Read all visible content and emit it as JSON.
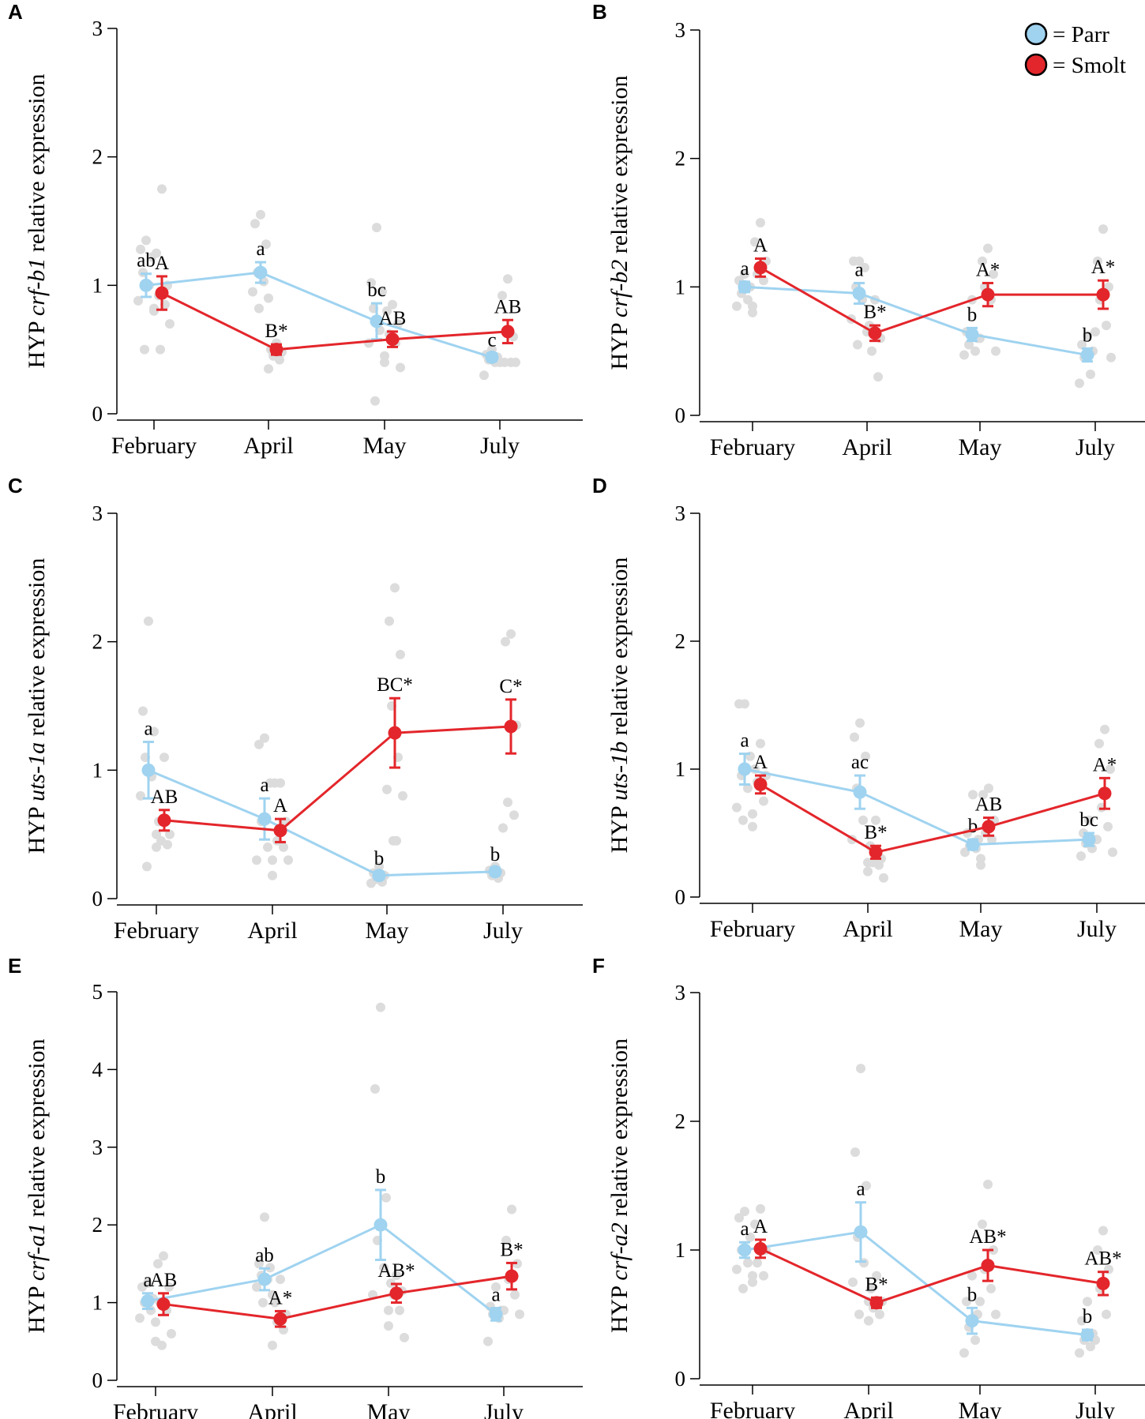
{
  "colors": {
    "parr": "#9fd3f0",
    "smolt": "#e3262b",
    "raw_points": "#dcdcdc",
    "axis": "#000000"
  },
  "legend": {
    "items": [
      {
        "key": "parr",
        "label": "= Parr"
      },
      {
        "key": "smolt",
        "label": "= Smolt"
      }
    ]
  },
  "chart_data": [
    {
      "type": "line",
      "panel": "A",
      "ylabel_prefix": "HYP ",
      "ylabel_gene": "crf-b1",
      "ylabel_suffix": " relative expression",
      "categories": [
        "February",
        "April",
        "May",
        "July"
      ],
      "ylim": [
        0,
        3
      ],
      "yticks": [
        0,
        1,
        2,
        3
      ],
      "series": [
        {
          "name": "Parr",
          "key": "parr",
          "mean": [
            1.0,
            1.1,
            0.72,
            0.44
          ],
          "sem": [
            0.09,
            0.08,
            0.14,
            0.03
          ],
          "letters": [
            "ab",
            "a",
            "bc",
            "c"
          ],
          "points": [
            [
              1.35,
              1.28,
              1.22,
              1.1,
              1.0,
              0.88,
              0.82,
              0.5
            ],
            [
              1.55,
              1.48,
              1.32,
              1.1,
              1.03,
              0.95,
              0.9,
              0.82
            ],
            [
              1.45,
              1.02,
              0.95,
              0.82,
              0.65,
              0.55,
              0.4,
              0.1
            ],
            [
              0.5,
              0.46,
              0.44,
              0.42,
              0.4,
              0.3
            ]
          ]
        },
        {
          "name": "Smolt",
          "key": "smolt",
          "mean": [
            0.94,
            0.5,
            0.58,
            0.64
          ],
          "sem": [
            0.13,
            0.04,
            0.06,
            0.09
          ],
          "letters": [
            "A",
            "B*",
            "AB",
            "AB"
          ],
          "points": [
            [
              1.75,
              1.25,
              1.0,
              0.92,
              0.85,
              0.8,
              0.7,
              0.5
            ],
            [
              0.55,
              0.5,
              0.48,
              0.45,
              0.42,
              0.35
            ],
            [
              0.85,
              0.8,
              0.7,
              0.62,
              0.55,
              0.45,
              0.36
            ],
            [
              1.05,
              0.92,
              0.6,
              0.4,
              0.4,
              0.4,
              0.4
            ]
          ]
        }
      ]
    },
    {
      "type": "line",
      "panel": "B",
      "ylabel_prefix": "HYP ",
      "ylabel_gene": "crf-b2",
      "ylabel_suffix": " relative expression",
      "categories": [
        "February",
        "April",
        "May",
        "July"
      ],
      "ylim": [
        0,
        3
      ],
      "yticks": [
        0,
        1,
        2,
        3
      ],
      "series": [
        {
          "name": "Parr",
          "key": "parr",
          "mean": [
            1.0,
            0.95,
            0.63,
            0.47
          ],
          "sem": [
            0.04,
            0.08,
            0.05,
            0.05
          ],
          "letters": [
            "a",
            "a",
            "b",
            "b"
          ],
          "points": [
            [
              1.1,
              1.05,
              1.0,
              0.95,
              0.9,
              0.85,
              0.8
            ],
            [
              1.2,
              1.2,
              1.15,
              1.0,
              0.9,
              0.75,
              0.65,
              0.55
            ],
            [
              0.9,
              0.65,
              0.6,
              0.55,
              0.5,
              0.47
            ],
            [
              0.62,
              0.55,
              0.5,
              0.45,
              0.32,
              0.25
            ]
          ]
        },
        {
          "name": "Smolt",
          "key": "smolt",
          "mean": [
            1.15,
            0.64,
            0.94,
            0.94
          ],
          "sem": [
            0.07,
            0.06,
            0.09,
            0.11
          ],
          "letters": [
            "A",
            "B*",
            "A*",
            "A*"
          ],
          "points": [
            [
              1.5,
              1.35,
              1.2,
              1.1,
              1.05,
              0.85
            ],
            [
              0.9,
              0.7,
              0.6,
              0.5,
              0.3
            ],
            [
              1.3,
              1.2,
              1.1,
              1.0,
              0.9,
              0.6,
              0.5
            ],
            [
              1.45,
              1.2,
              1.0,
              0.9,
              0.7,
              0.65,
              0.45
            ]
          ]
        }
      ]
    },
    {
      "type": "line",
      "panel": "C",
      "ylabel_prefix": "HYP ",
      "ylabel_gene": "uts-1a",
      "ylabel_suffix": " relative expression",
      "categories": [
        "February",
        "April",
        "May",
        "July"
      ],
      "ylim": [
        0,
        3
      ],
      "yticks": [
        0,
        1,
        2,
        3
      ],
      "series": [
        {
          "name": "Parr",
          "key": "parr",
          "mean": [
            1.0,
            0.62,
            0.18,
            0.21
          ],
          "sem": [
            0.22,
            0.16,
            0.03,
            0.03
          ],
          "letters": [
            "a",
            "a",
            "b",
            "b"
          ],
          "points": [
            [
              2.16,
              1.46,
              1.3,
              1.1,
              0.95,
              0.8,
              0.5,
              0.25
            ],
            [
              1.25,
              1.2,
              0.9,
              0.6,
              0.4,
              0.3,
              0.18
            ],
            [
              0.25,
              0.2,
              0.18,
              0.15,
              0.13,
              0.12
            ],
            [
              0.25,
              0.22,
              0.2,
              0.18,
              0.16
            ]
          ]
        },
        {
          "name": "Smolt",
          "key": "smolt",
          "mean": [
            0.61,
            0.53,
            1.29,
            1.34
          ],
          "sem": [
            0.08,
            0.09,
            0.27,
            0.21
          ],
          "letters": [
            "AB",
            "A",
            "BC*",
            "C*"
          ],
          "points": [
            [
              1.1,
              0.6,
              0.5,
              0.45,
              0.42,
              0.4
            ],
            [
              0.9,
              0.9,
              0.6,
              0.45,
              0.4,
              0.3,
              0.3
            ],
            [
              2.42,
              2.16,
              1.9,
              1.5,
              1.1,
              0.85,
              0.8,
              0.45,
              0.45
            ],
            [
              2.06,
              2.0,
              1.35,
              0.75,
              0.65,
              0.55
            ]
          ]
        }
      ]
    },
    {
      "type": "line",
      "panel": "D",
      "ylabel_prefix": "HYP ",
      "ylabel_gene": "uts-1b",
      "ylabel_suffix": " relative expression",
      "categories": [
        "February",
        "April",
        "May",
        "July"
      ],
      "ylim": [
        0,
        3
      ],
      "yticks": [
        0,
        1,
        2,
        3
      ],
      "series": [
        {
          "name": "Parr",
          "key": "parr",
          "mean": [
            1.0,
            0.82,
            0.41,
            0.45
          ],
          "sem": [
            0.12,
            0.13,
            0.04,
            0.05
          ],
          "letters": [
            "a",
            "ac",
            "b",
            "bc"
          ],
          "points": [
            [
              1.51,
              1.51,
              1.1,
              0.95,
              0.85,
              0.7,
              0.65,
              0.6
            ],
            [
              1.36,
              1.25,
              1.1,
              0.85,
              0.6,
              0.45,
              0.27
            ],
            [
              0.8,
              0.5,
              0.45,
              0.4,
              0.38,
              0.35,
              0.25
            ],
            [
              0.6,
              0.5,
              0.45,
              0.42,
              0.38,
              0.32
            ]
          ]
        },
        {
          "name": "Smolt",
          "key": "smolt",
          "mean": [
            0.88,
            0.35,
            0.55,
            0.81
          ],
          "sem": [
            0.07,
            0.05,
            0.07,
            0.12
          ],
          "letters": [
            "A",
            "B*",
            "AB",
            "A*"
          ],
          "points": [
            [
              1.2,
              1.0,
              0.95,
              0.9,
              0.75,
              0.55
            ],
            [
              0.6,
              0.4,
              0.3,
              0.27,
              0.25,
              0.2,
              0.15
            ],
            [
              0.85,
              0.8,
              0.6,
              0.5,
              0.45,
              0.3
            ],
            [
              1.31,
              1.2,
              1.0,
              0.7,
              0.55,
              0.45,
              0.35
            ]
          ]
        }
      ]
    },
    {
      "type": "line",
      "panel": "E",
      "ylabel_prefix": "HYP ",
      "ylabel_gene": "crf-a1",
      "ylabel_suffix": " relative expression",
      "categories": [
        "February",
        "April",
        "May",
        "July"
      ],
      "ylim": [
        0,
        5
      ],
      "yticks": [
        0,
        1,
        2,
        3,
        4,
        5
      ],
      "series": [
        {
          "name": "Parr",
          "key": "parr",
          "mean": [
            1.02,
            1.3,
            2.0,
            0.85
          ],
          "sem": [
            0.1,
            0.14,
            0.45,
            0.08
          ],
          "letters": [
            "a",
            "ab",
            "b",
            "a"
          ],
          "points": [
            [
              1.25,
              1.2,
              1.05,
              1.0,
              0.9,
              0.8,
              0.5
            ],
            [
              2.1,
              1.5,
              1.45,
              1.35,
              1.3,
              1.2,
              1.1,
              1.0
            ],
            [
              4.8,
              3.75,
              2.35,
              1.8,
              1.45,
              1.1,
              0.9
            ],
            [
              1.2,
              0.95,
              0.9,
              0.85,
              0.8,
              0.5
            ]
          ]
        },
        {
          "name": "Smolt",
          "key": "smolt",
          "mean": [
            0.98,
            0.79,
            1.12,
            1.34
          ],
          "sem": [
            0.14,
            0.1,
            0.12,
            0.17
          ],
          "letters": [
            "AB",
            "A*",
            "AB*",
            "B*"
          ],
          "points": [
            [
              1.6,
              1.5,
              1.2,
              1.0,
              0.9,
              0.75,
              0.6,
              0.45
            ],
            [
              1.3,
              1.0,
              0.85,
              0.75,
              0.65,
              0.45
            ],
            [
              1.35,
              1.25,
              1.15,
              1.1,
              0.9,
              0.7,
              0.55
            ],
            [
              2.2,
              1.8,
              1.5,
              1.3,
              1.1,
              0.9,
              0.85
            ]
          ]
        }
      ]
    },
    {
      "type": "line",
      "panel": "F",
      "ylabel_prefix": "HYP ",
      "ylabel_gene": "crf-a2",
      "ylabel_suffix": " relative expression",
      "categories": [
        "February",
        "April",
        "May",
        "July"
      ],
      "ylim": [
        0,
        3
      ],
      "yticks": [
        0,
        1,
        2,
        3
      ],
      "series": [
        {
          "name": "Parr",
          "key": "parr",
          "mean": [
            1.0,
            1.14,
            0.45,
            0.34
          ],
          "sem": [
            0.06,
            0.23,
            0.1,
            0.04
          ],
          "letters": [
            "a",
            "a",
            "b",
            "b"
          ],
          "points": [
            [
              1.3,
              1.25,
              1.1,
              1.0,
              0.9,
              0.85,
              0.8,
              0.7
            ],
            [
              2.41,
              1.76,
              1.5,
              1.1,
              0.9,
              0.75,
              0.6,
              0.5
            ],
            [
              0.8,
              0.6,
              0.5,
              0.4,
              0.3,
              0.2
            ],
            [
              0.6,
              0.45,
              0.35,
              0.3,
              0.25,
              0.2
            ]
          ]
        },
        {
          "name": "Smolt",
          "key": "smolt",
          "mean": [
            1.01,
            0.59,
            0.88,
            0.74
          ],
          "sem": [
            0.07,
            0.04,
            0.12,
            0.09
          ],
          "letters": [
            "A",
            "B*",
            "AB*",
            "AB*"
          ],
          "points": [
            [
              1.32,
              1.2,
              1.0,
              0.9,
              0.8,
              0.75
            ],
            [
              0.8,
              0.7,
              0.6,
              0.55,
              0.5,
              0.45
            ],
            [
              1.51,
              1.2,
              1.0,
              0.85,
              0.7,
              0.6,
              0.5
            ],
            [
              1.15,
              1.0,
              0.85,
              0.7,
              0.5,
              0.3
            ]
          ]
        }
      ]
    }
  ]
}
